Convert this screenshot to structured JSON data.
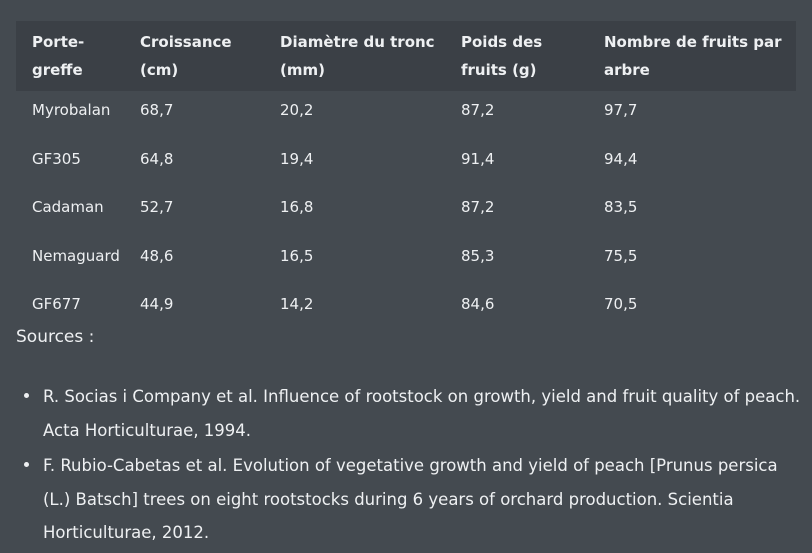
{
  "table": {
    "headers": [
      "Porte-\ngreffe",
      "Croissance\n(cm)",
      "Diamètre du tronc\n(mm)",
      "Poids des\nfruits (g)",
      "Nombre de fruits par\narbre"
    ],
    "rows": [
      [
        "Myrobalan",
        "68,7",
        "20,2",
        "87,2",
        "97,7"
      ],
      [
        "GF305",
        "64,8",
        "19,4",
        "91,4",
        "94,4"
      ],
      [
        "Cadaman",
        "52,7",
        "16,8",
        "87,2",
        "83,5"
      ],
      [
        "Nemaguard",
        "48,6",
        "16,5",
        "85,3",
        "75,5"
      ],
      [
        "GF677",
        "44,9",
        "14,2",
        "84,6",
        "70,5"
      ]
    ]
  },
  "sources": {
    "title": "Sources :",
    "items": [
      "R. Socias i Company et al. Influence of rootstock on growth, yield and fruit quality of peach. Acta Horticulturae, 1994.",
      "F. Rubio-Cabetas et al. Evolution of vegetative growth and yield of peach [Prunus persica (L.) Batsch] trees on eight rootstocks during 6 years of orchard production. Scientia Horticulturae, 2012."
    ]
  }
}
